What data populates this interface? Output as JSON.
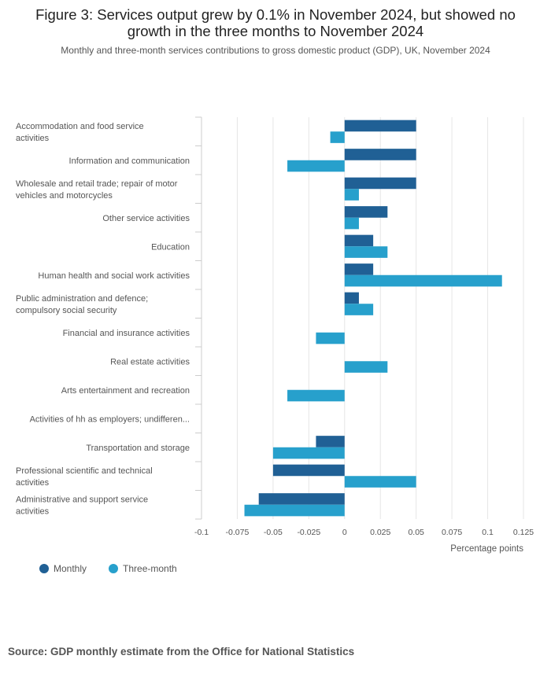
{
  "chart_data": {
    "type": "bar",
    "orientation": "horizontal",
    "title": "Figure 3: Services output grew by 0.1% in November 2024, but showed no growth in the three months to November 2024",
    "subtitle": "Monthly and three-month services contributions to gross domestic product (GDP), UK, November 2024",
    "xlabel": "Percentage points",
    "xlim": [
      -0.1,
      0.125
    ],
    "xticks": [
      -0.1,
      -0.075,
      -0.05,
      -0.025,
      0,
      0.025,
      0.05,
      0.075,
      0.1,
      0.125
    ],
    "xtick_labels": [
      "-0.1",
      "-0.075",
      "-0.05",
      "-0.025",
      "0",
      "0.025",
      "0.05",
      "0.075",
      "0.1",
      "0.125"
    ],
    "grid": true,
    "legend_position": "bottom-left",
    "categories": [
      [
        "Accommodation and food service",
        "activities"
      ],
      [
        "Information and communication"
      ],
      [
        "Wholesale and retail trade; repair of motor",
        "vehicles and motorcycles"
      ],
      [
        "Other service activities"
      ],
      [
        "Education"
      ],
      [
        "Human health and social work activities"
      ],
      [
        "Public administration and defence;",
        "compulsory social security"
      ],
      [
        "Financial and insurance activities"
      ],
      [
        "Real estate activities"
      ],
      [
        "Arts entertainment and recreation"
      ],
      [
        "Activities of hh as employers; undifferen..."
      ],
      [
        "Transportation and storage"
      ],
      [
        "Professional scientific and technical",
        "activities"
      ],
      [
        "Administrative and support service",
        "activities"
      ]
    ],
    "series": [
      {
        "name": "Monthly",
        "color": "#206095",
        "values": [
          0.05,
          0.05,
          0.05,
          0.03,
          0.02,
          0.02,
          0.01,
          0,
          0,
          0,
          0,
          -0.02,
          -0.05,
          -0.06
        ]
      },
      {
        "name": "Three-month",
        "color": "#27a0cc",
        "values": [
          -0.01,
          -0.04,
          0.01,
          0.01,
          0.03,
          0.11,
          0.02,
          -0.02,
          0.03,
          -0.04,
          0,
          -0.05,
          0.05,
          -0.07
        ]
      }
    ]
  },
  "source": "Source: GDP monthly estimate from the Office for National Statistics"
}
